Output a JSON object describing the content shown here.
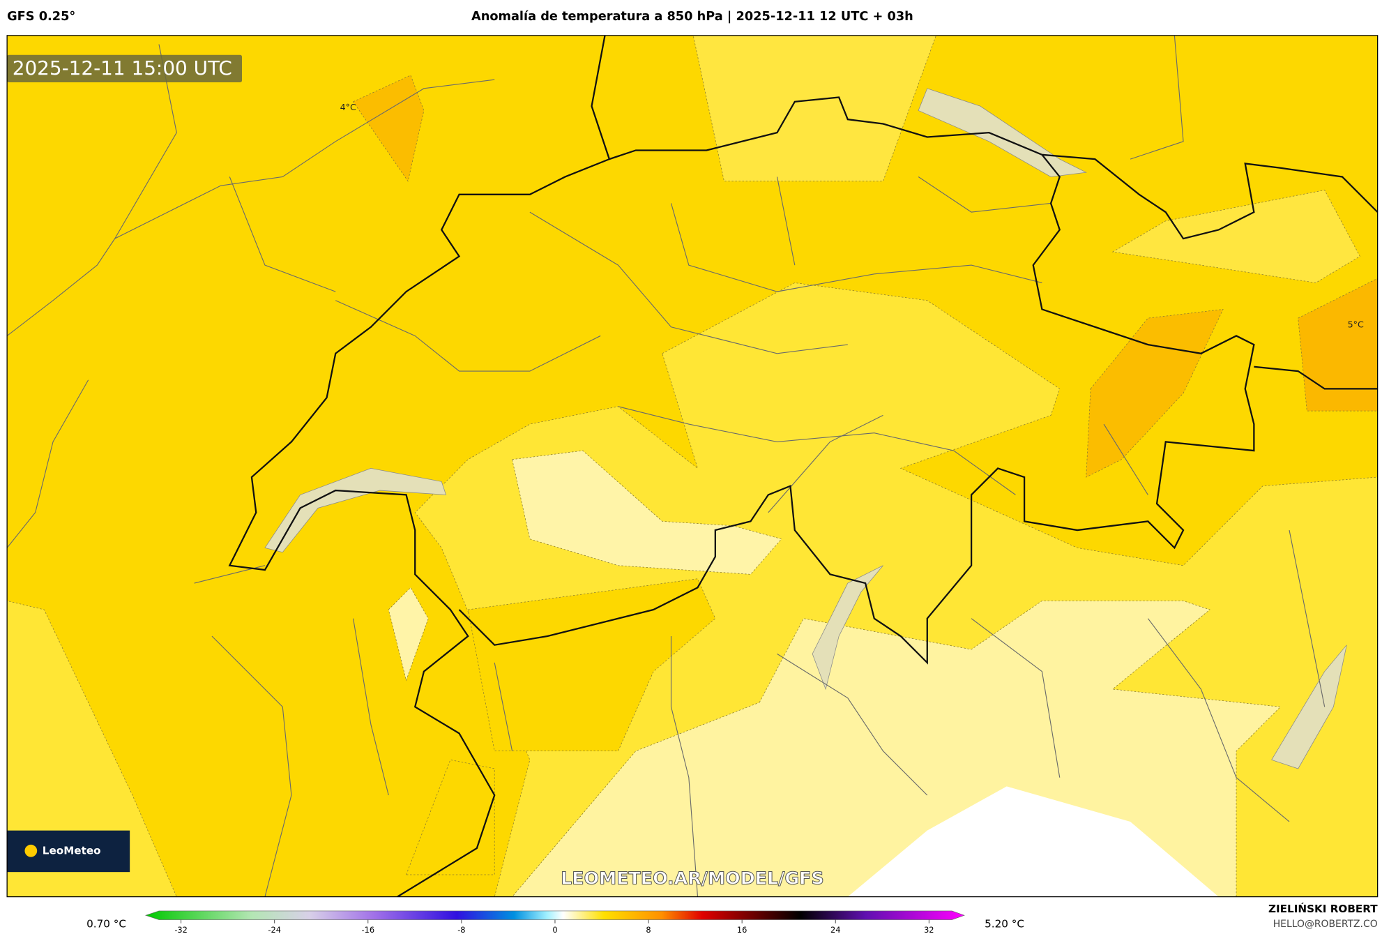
{
  "header": {
    "model": "GFS 0.25°",
    "title": "Anomalía de temperatura a 850 hPa | 2025-12-11 12 UTC + 03h"
  },
  "map": {
    "timestamp": "2025-12-11 15:00 UTC",
    "contour_labels": [
      "4°C",
      "5°C"
    ],
    "logo": "LeoMeteo",
    "watermark": "LEOMETEO.AR/MODEL/GFS"
  },
  "colorbar": {
    "min_label": "0.70 °C",
    "max_label": "5.20 °C",
    "ticks": [
      -32,
      -24,
      -16,
      -8,
      0,
      8,
      16,
      24,
      32
    ]
  },
  "footer": {
    "author": "ZIELIŃSKI ROBERT",
    "contact": "HELLO@ROBERTZ.CO"
  }
}
